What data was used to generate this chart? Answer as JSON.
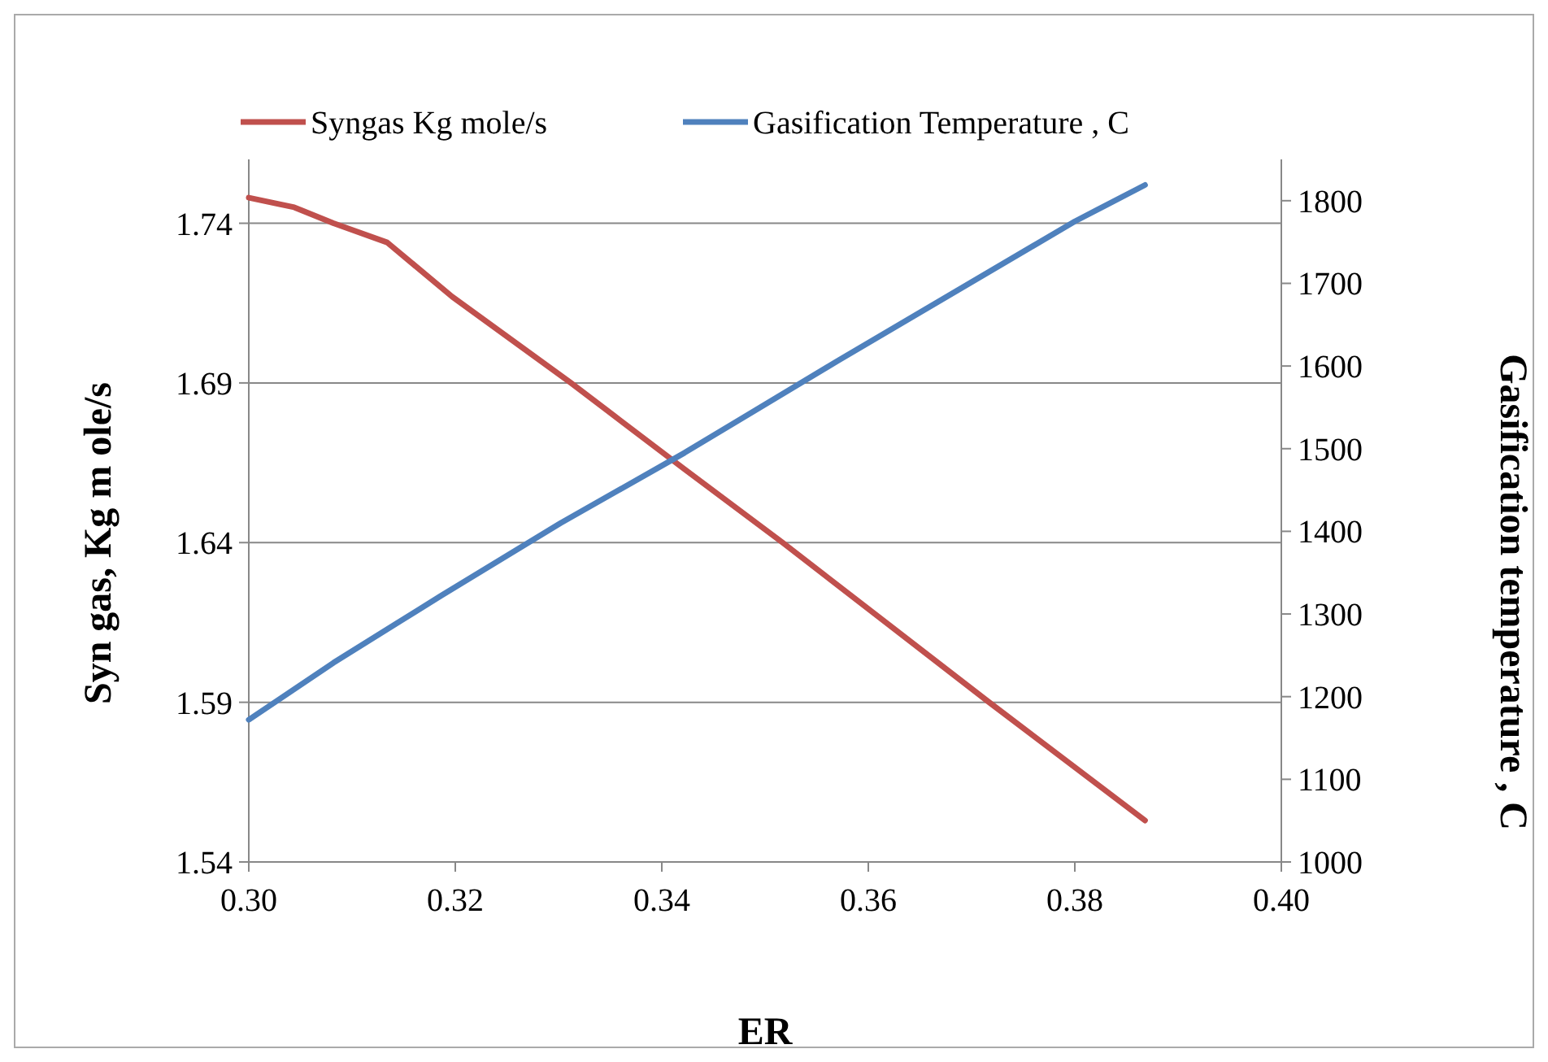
{
  "chart_data": {
    "type": "line",
    "xlabel": "ER",
    "ylabel": "Syn gas, Kg m ole/s",
    "y2label": "Gasification temperature , C",
    "xlim": [
      0.3,
      0.4
    ],
    "xticks": [
      {
        "value": 0.3,
        "label": "0.30"
      },
      {
        "value": 0.32,
        "label": "0.32"
      },
      {
        "value": 0.34,
        "label": "0.34"
      },
      {
        "value": 0.36,
        "label": "0.36"
      },
      {
        "value": 0.38,
        "label": "0.38"
      },
      {
        "value": 0.4,
        "label": "0.40"
      }
    ],
    "ylim": [
      1.54,
      1.76
    ],
    "yticks": [
      1.54,
      1.59,
      1.64,
      1.69,
      1.74
    ],
    "y2lim": [
      1000,
      1850
    ],
    "y2ticks": [
      1000,
      1100,
      1200,
      1300,
      1400,
      1500,
      1600,
      1700,
      1800
    ],
    "grid": "y",
    "legend": "top",
    "marker": "none",
    "line_style": "solid",
    "series": [
      {
        "name": "Syngas Kg mole/s",
        "color": "#c0504d",
        "x": [
          0.3,
          0.3044,
          0.3082,
          0.3134,
          0.3197,
          0.3312,
          0.3422,
          0.3517,
          0.3717,
          0.3868
        ],
        "values": [
          1.748,
          1.745,
          1.74,
          1.734,
          1.717,
          1.69,
          1.663,
          1.64,
          1.59,
          1.553
        ]
      },
      {
        "name": "Gasification Temperature , C",
        "color": "#4f81bd",
        "axis": "y2",
        "x": [
          0.3,
          0.3082,
          0.3186,
          0.3302,
          0.3422,
          0.357,
          0.38,
          0.3868
        ],
        "values": [
          1172,
          1241,
          1322,
          1410,
          1495,
          1606,
          1775,
          1819
        ]
      }
    ]
  }
}
